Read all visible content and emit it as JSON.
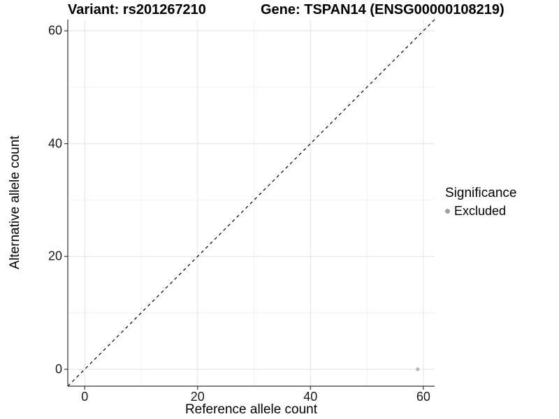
{
  "titles": {
    "variant": "Variant: rs201267210",
    "gene": "Gene: TSPAN14 (ENSG00000108219)"
  },
  "chart_data": {
    "type": "scatter",
    "title_left": "Variant: rs201267210",
    "title_right": "Gene: TSPAN14 (ENSG00000108219)",
    "xlabel": "Reference allele count",
    "ylabel": "Alternative allele count",
    "xlim": [
      -3,
      62
    ],
    "ylim": [
      -3,
      62
    ],
    "x_ticks": [
      0,
      20,
      40,
      60
    ],
    "y_ticks": [
      0,
      20,
      40,
      60
    ],
    "grid_ticks": [
      0,
      10,
      20,
      30,
      40,
      50,
      60
    ],
    "grid": true,
    "identity_line": {
      "style": "dashed",
      "from": [
        -3,
        -3
      ],
      "to": [
        62,
        62
      ]
    },
    "points": [
      {
        "x": 59,
        "y": 0,
        "significance": "Excluded"
      }
    ],
    "legend": {
      "title": "Significance",
      "position": "right",
      "items": [
        {
          "label": "Excluded",
          "marker": "circle"
        }
      ]
    }
  },
  "colors": {
    "background": "#ffffff",
    "grid_major": "#e2e2e2",
    "grid_minor": "#f0f0f0",
    "axis_line": "#333333",
    "tick_mark": "#333333",
    "identity_line": "#000000",
    "point": "#b5b5b5",
    "legend_marker": "#a1a1a1"
  }
}
